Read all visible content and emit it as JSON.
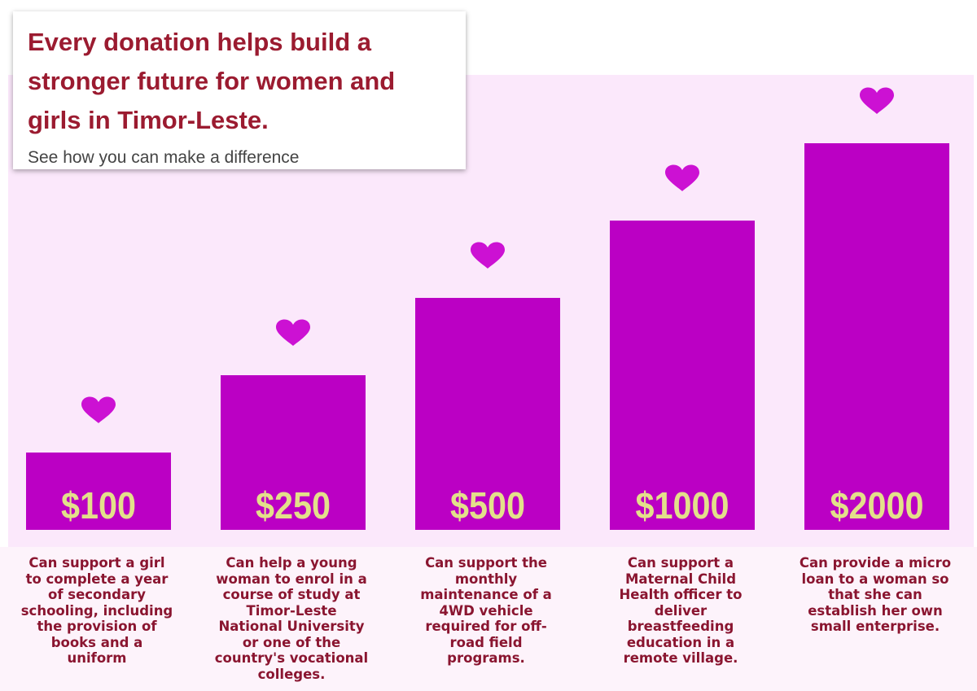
{
  "header": {
    "title": "Every donation helps build a stronger future for women and girls in Timor-Leste.",
    "subtitle": "See how you can make a difference"
  },
  "colors": {
    "bar": "#bb00c4",
    "heart": "#cc11d3",
    "value_label": "#e3e08a",
    "description": "#8a1530",
    "title": "#9b1b30",
    "background": "#fbe8fb"
  },
  "chart_data": {
    "type": "bar",
    "categories": [
      "$100",
      "$250",
      "$500",
      "$1000",
      "$2000"
    ],
    "values": [
      1,
      2,
      3,
      4,
      5
    ],
    "ylim": [
      0,
      5
    ],
    "grid": false,
    "marker_icon": "heart-icon",
    "descriptions": [
      "Can support a girl to complete a year of secondary schooling, including the provision of books and a uniform",
      "Can help a young woman to enrol in a course of study at Timor-Leste National University or one of the country's vocational colleges.",
      "Can support the monthly maintenance of a 4WD vehicle required for off-road field programs.",
      "Can support a Maternal Child Health officer to deliver breastfeeding education in a remote village.",
      "Can provide a micro loan to a woman so that she can establish her own small enterprise."
    ]
  }
}
